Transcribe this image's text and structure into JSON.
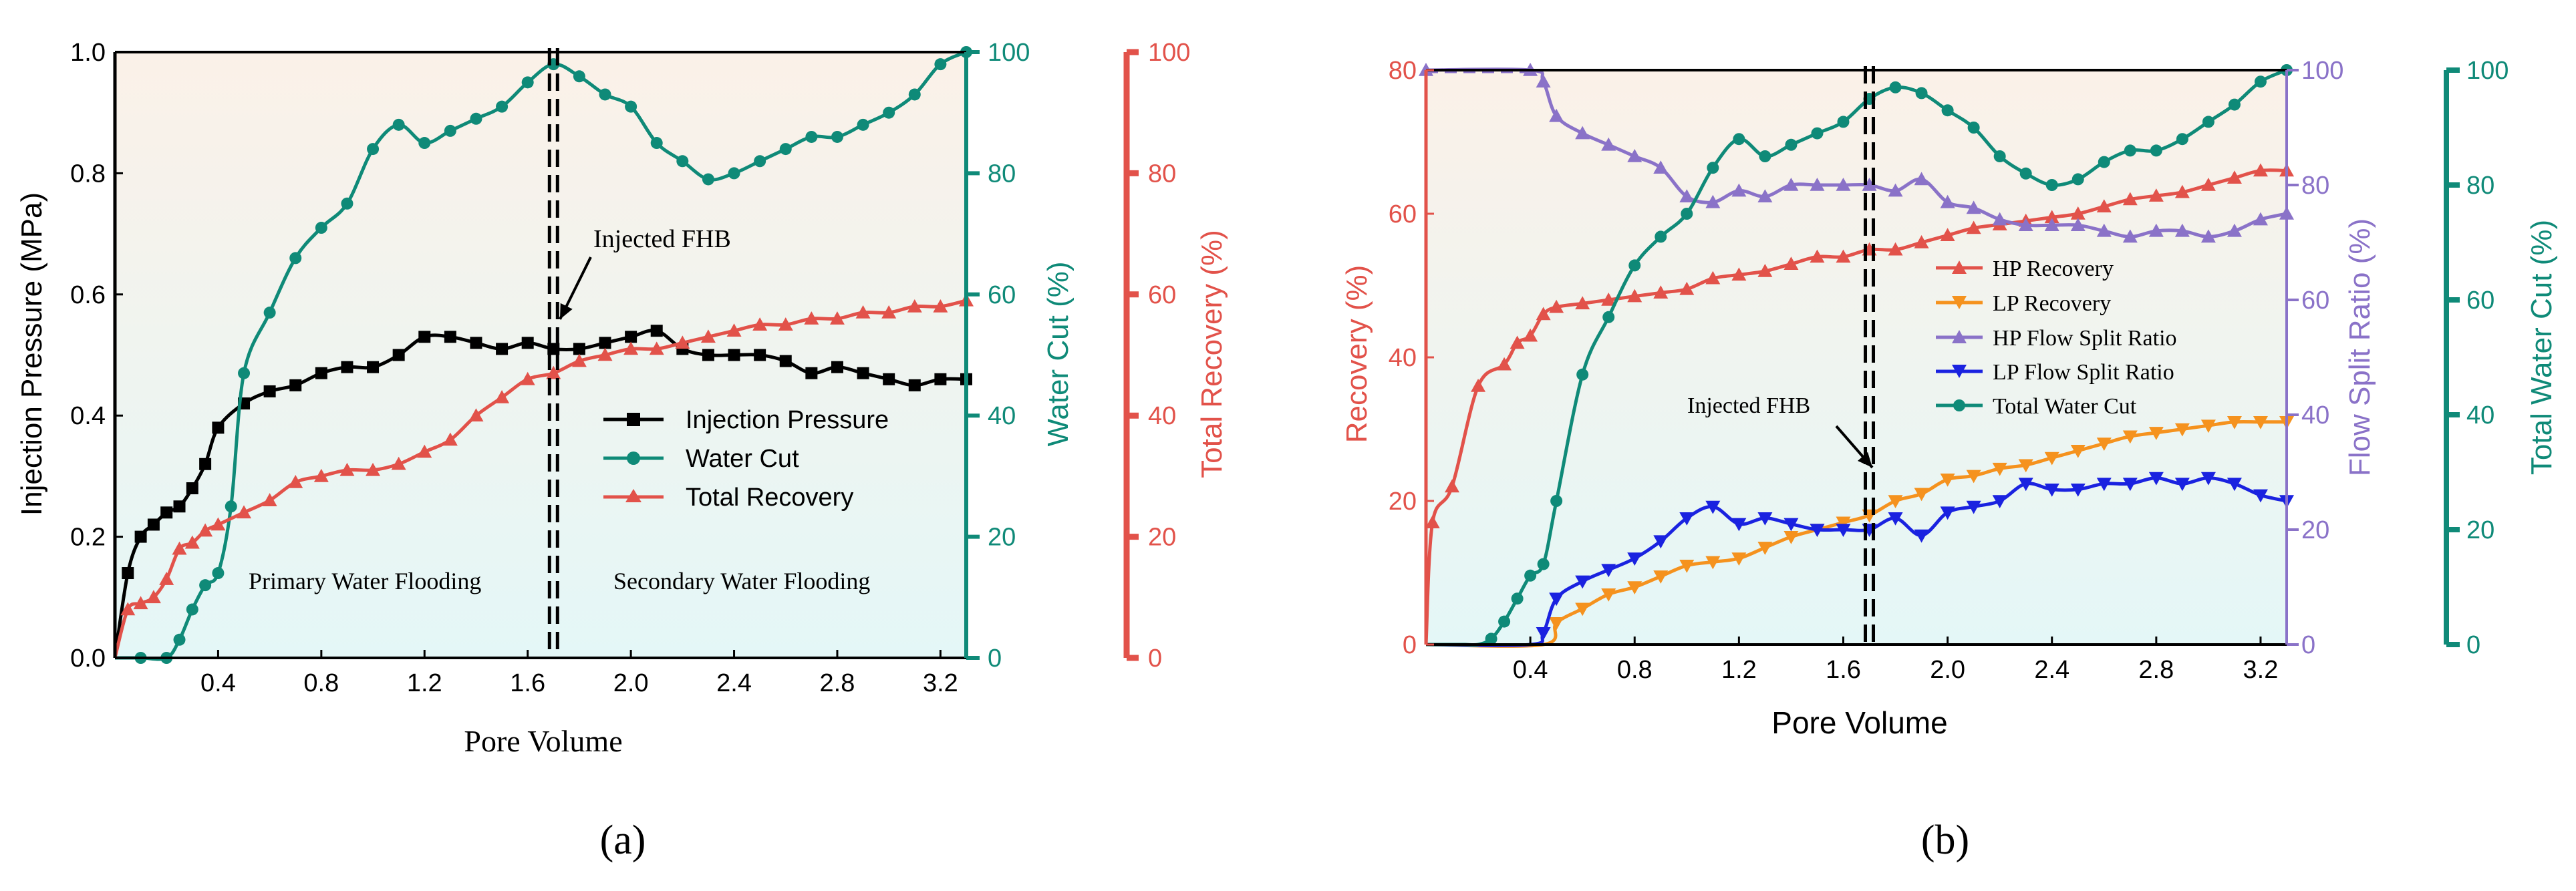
{
  "colors": {
    "black": "#000000",
    "teal": "#0f8a78",
    "red": "#e2524a",
    "orange": "#f5921e",
    "purple": "#8a72c8",
    "blue": "#1a22e0",
    "bg_top": "#fbf1e8",
    "bg_bottom": "#e4f7f7"
  },
  "chart_data": [
    {
      "type": "line",
      "panel_label": "(a)",
      "xlabel": "Pore Volume",
      "xlim": [
        0,
        3.3
      ],
      "xticks": [
        "0.4",
        "0.8",
        "1.2",
        "1.6",
        "2.0",
        "2.4",
        "2.8",
        "3.2"
      ],
      "axes": {
        "left": {
          "label": "Injection Pressure (MPa)",
          "lim": [
            0,
            1.0
          ],
          "ticks": [
            "0.0",
            "0.2",
            "0.4",
            "0.6",
            "0.8",
            "1.0"
          ]
        },
        "right1": {
          "label": "Water Cut (%)",
          "lim": [
            0,
            100
          ],
          "ticks": [
            "0",
            "20",
            "40",
            "60",
            "80",
            "100"
          ]
        },
        "right2": {
          "label": "Total Recovery (%)",
          "lim": [
            0,
            100
          ],
          "ticks": [
            "0",
            "20",
            "40",
            "60",
            "80",
            "100"
          ]
        }
      },
      "annotations": {
        "arrow_label": "Injected FHB",
        "region_left": "Primary Water Flooding",
        "region_right": "Secondary Water Flooding",
        "injection_x": 1.7
      },
      "series": [
        {
          "name": "Injection Pressure",
          "axis": "left",
          "marker": "square",
          "color": "#000000",
          "x": [
            0,
            0.05,
            0.1,
            0.15,
            0.2,
            0.25,
            0.3,
            0.35,
            0.4,
            0.5,
            0.6,
            0.7,
            0.8,
            0.9,
            1.0,
            1.1,
            1.2,
            1.3,
            1.4,
            1.5,
            1.6,
            1.7,
            1.8,
            1.9,
            2.0,
            2.1,
            2.2,
            2.3,
            2.4,
            2.5,
            2.6,
            2.7,
            2.8,
            2.9,
            3.0,
            3.1,
            3.2,
            3.3
          ],
          "y": [
            0.0,
            0.14,
            0.2,
            0.22,
            0.24,
            0.25,
            0.28,
            0.32,
            0.38,
            0.42,
            0.44,
            0.45,
            0.47,
            0.48,
            0.48,
            0.5,
            0.53,
            0.53,
            0.52,
            0.51,
            0.52,
            0.51,
            0.51,
            0.52,
            0.53,
            0.54,
            0.51,
            0.5,
            0.5,
            0.5,
            0.49,
            0.47,
            0.48,
            0.47,
            0.46,
            0.45,
            0.46,
            0.46
          ]
        },
        {
          "name": "Water Cut",
          "axis": "right1",
          "marker": "circle",
          "color": "#0f8a78",
          "x": [
            0,
            0.1,
            0.2,
            0.25,
            0.3,
            0.35,
            0.4,
            0.45,
            0.5,
            0.6,
            0.7,
            0.8,
            0.9,
            1.0,
            1.1,
            1.2,
            1.3,
            1.4,
            1.5,
            1.6,
            1.7,
            1.8,
            1.9,
            2.0,
            2.1,
            2.2,
            2.3,
            2.4,
            2.5,
            2.6,
            2.7,
            2.8,
            2.9,
            3.0,
            3.1,
            3.2,
            3.3
          ],
          "y": [
            0,
            0,
            0,
            3,
            8,
            12,
            14,
            25,
            47,
            57,
            66,
            71,
            75,
            84,
            88,
            85,
            87,
            89,
            91,
            95,
            98,
            96,
            93,
            91,
            85,
            82,
            79,
            80,
            82,
            84,
            86,
            86,
            88,
            90,
            93,
            98,
            100
          ]
        },
        {
          "name": "Total Recovery",
          "axis": "right2",
          "marker": "triangle",
          "color": "#e2524a",
          "x": [
            0,
            0.05,
            0.1,
            0.15,
            0.2,
            0.25,
            0.3,
            0.35,
            0.4,
            0.5,
            0.6,
            0.7,
            0.8,
            0.9,
            1.0,
            1.1,
            1.2,
            1.3,
            1.4,
            1.5,
            1.6,
            1.7,
            1.8,
            1.9,
            2.0,
            2.1,
            2.2,
            2.3,
            2.4,
            2.5,
            2.6,
            2.7,
            2.8,
            2.9,
            3.0,
            3.1,
            3.2,
            3.3
          ],
          "y": [
            0,
            8,
            9,
            10,
            13,
            18,
            19,
            21,
            22,
            24,
            26,
            29,
            30,
            31,
            31,
            32,
            34,
            36,
            40,
            43,
            46,
            47,
            49,
            50,
            51,
            51,
            52,
            53,
            54,
            55,
            55,
            56,
            56,
            57,
            57,
            58,
            58,
            59
          ]
        }
      ]
    },
    {
      "type": "line",
      "panel_label": "(b)",
      "xlabel": "Pore Volume",
      "xlim": [
        0,
        3.3
      ],
      "xticks": [
        "0.4",
        "0.8",
        "1.2",
        "1.6",
        "2.0",
        "2.4",
        "2.8",
        "3.2"
      ],
      "axes": {
        "left": {
          "label": "Recovery (%)",
          "lim": [
            0,
            80
          ],
          "ticks": [
            "0",
            "20",
            "40",
            "60",
            "80"
          ]
        },
        "right1": {
          "label": "Flow Split Ratio (%)",
          "lim": [
            0,
            100
          ],
          "ticks": [
            "0",
            "20",
            "40",
            "60",
            "80",
            "100"
          ]
        },
        "right2": {
          "label": "Total Water Cut (%)",
          "lim": [
            0,
            100
          ],
          "ticks": [
            "0",
            "20",
            "40",
            "60",
            "80",
            "100"
          ]
        }
      },
      "annotations": {
        "arrow_label": "Injected FHB",
        "injection_x": 1.7
      },
      "series": [
        {
          "name": "HP Recovery",
          "axis": "left",
          "marker": "triangle",
          "color": "#e2524a",
          "x": [
            0,
            0.025,
            0.1,
            0.2,
            0.3,
            0.35,
            0.4,
            0.45,
            0.5,
            0.6,
            0.7,
            0.8,
            0.9,
            1.0,
            1.1,
            1.2,
            1.3,
            1.4,
            1.5,
            1.6,
            1.7,
            1.8,
            1.9,
            2.0,
            2.1,
            2.2,
            2.3,
            2.4,
            2.5,
            2.6,
            2.7,
            2.8,
            2.9,
            3.0,
            3.1,
            3.2,
            3.3
          ],
          "y": [
            0,
            17,
            22,
            36,
            39,
            42,
            43,
            46,
            47,
            47.5,
            48,
            48.5,
            49,
            49.5,
            51,
            51.5,
            52,
            53,
            54,
            54,
            55,
            55,
            56,
            57,
            58,
            58.5,
            59,
            59.5,
            60,
            61,
            62,
            62.5,
            63,
            64,
            65,
            66,
            66
          ]
        },
        {
          "name": "LP Recovery",
          "axis": "left",
          "marker": "triangle-down",
          "color": "#f5921e",
          "x": [
            0,
            0.45,
            0.5,
            0.6,
            0.7,
            0.8,
            0.9,
            1.0,
            1.1,
            1.2,
            1.3,
            1.4,
            1.5,
            1.6,
            1.7,
            1.8,
            1.9,
            2.0,
            2.1,
            2.2,
            2.3,
            2.4,
            2.5,
            2.6,
            2.7,
            2.8,
            2.9,
            3.0,
            3.1,
            3.2,
            3.3
          ],
          "y": [
            0,
            0,
            3,
            5,
            7,
            8,
            9.5,
            11,
            11.5,
            12,
            13.5,
            15,
            16,
            17,
            18,
            20,
            21,
            23,
            23.5,
            24.5,
            25,
            26,
            27,
            28,
            29,
            29.5,
            30,
            30.5,
            31,
            31,
            31
          ]
        },
        {
          "name": "HP Flow Split Ratio",
          "axis": "right1",
          "marker": "triangle",
          "color": "#8a72c8",
          "x": [
            0,
            0.4,
            0.45,
            0.5,
            0.6,
            0.7,
            0.8,
            0.9,
            1.0,
            1.1,
            1.2,
            1.3,
            1.4,
            1.5,
            1.6,
            1.7,
            1.8,
            1.9,
            2.0,
            2.1,
            2.2,
            2.3,
            2.4,
            2.5,
            2.6,
            2.7,
            2.8,
            2.9,
            3.0,
            3.1,
            3.2,
            3.3
          ],
          "y": [
            100,
            100,
            98,
            92,
            89,
            87,
            85,
            83,
            78,
            77,
            79,
            78,
            80,
            80,
            80,
            80,
            79,
            81,
            77,
            76,
            74,
            73,
            73,
            73,
            72,
            71,
            72,
            72,
            71,
            72,
            74,
            75
          ]
        },
        {
          "name": "LP Flow Split Ratio",
          "axis": "right1",
          "marker": "triangle-down",
          "color": "#1a22e0",
          "x": [
            0,
            0.4,
            0.45,
            0.5,
            0.6,
            0.7,
            0.8,
            0.9,
            1.0,
            1.1,
            1.2,
            1.3,
            1.4,
            1.5,
            1.6,
            1.7,
            1.8,
            1.9,
            2.0,
            2.1,
            2.2,
            2.3,
            2.4,
            2.5,
            2.6,
            2.7,
            2.8,
            2.9,
            3.0,
            3.1,
            3.2,
            3.3
          ],
          "y": [
            0,
            0,
            2,
            8,
            11,
            13,
            15,
            18,
            22,
            24,
            21,
            22,
            21,
            20,
            20,
            20,
            22,
            19,
            23,
            24,
            25,
            28,
            27,
            27,
            28,
            28,
            29,
            28,
            29,
            28,
            26,
            25
          ]
        },
        {
          "name": "Total Water Cut",
          "axis": "right2",
          "marker": "circle",
          "color": "#0f8a78",
          "x": [
            0,
            0.05,
            0.1,
            0.15,
            0.2,
            0.25,
            0.3,
            0.35,
            0.4,
            0.45,
            0.5,
            0.6,
            0.7,
            0.8,
            0.9,
            1.0,
            1.1,
            1.2,
            1.3,
            1.4,
            1.5,
            1.6,
            1.7,
            1.8,
            1.9,
            2.0,
            2.1,
            2.2,
            2.3,
            2.4,
            2.5,
            2.6,
            2.7,
            2.8,
            2.9,
            3.0,
            3.1,
            3.2,
            3.3
          ],
          "y": [
            0,
            0,
            0,
            0,
            0,
            1,
            4,
            8,
            12,
            14,
            25,
            47,
            57,
            66,
            71,
            75,
            83,
            88,
            85,
            87,
            89,
            91,
            95,
            97,
            96,
            93,
            90,
            85,
            82,
            80,
            81,
            84,
            86,
            86,
            88,
            91,
            94,
            98,
            100
          ]
        }
      ]
    }
  ]
}
